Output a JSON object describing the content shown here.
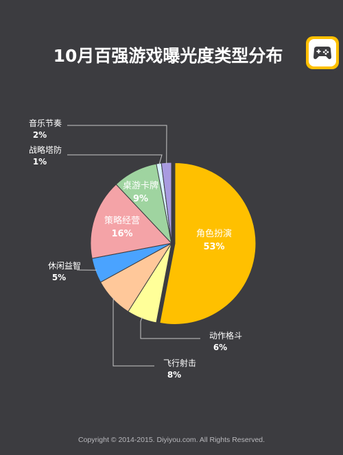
{
  "title": "10月百强游戏曝光度类型分布",
  "logo_icon": "gamepad-icon",
  "footer": "Copyright © 2014-2015. Diyiyou.com. All Rights Reserved.",
  "colors": {
    "background": "#3c3c40",
    "accent": "#ffc000",
    "label_dark": "#ffffff",
    "leader_line": "#c8c8c8"
  },
  "chart_data": {
    "type": "pie",
    "title": "10月百强游戏曝光度类型分布",
    "unit": "%",
    "slices": [
      {
        "name": "角色扮演",
        "value": 53,
        "label": "53%",
        "color": "#ffc000"
      },
      {
        "name": "动作格斗",
        "value": 6,
        "label": "6%",
        "color": "#ffff99"
      },
      {
        "name": "飞行射击",
        "value": 8,
        "label": "8%",
        "color": "#ffc89a"
      },
      {
        "name": "休闲益智",
        "value": 5,
        "label": "5%",
        "color": "#4aa3ff"
      },
      {
        "name": "策略经营",
        "value": 16,
        "label": "16%",
        "color": "#f4a3a7"
      },
      {
        "name": "桌游卡牌",
        "value": 9,
        "label": "9%",
        "color": "#9fd4a0"
      },
      {
        "name": "战略塔防",
        "value": 1,
        "label": "1%",
        "color": "#d8f2ff"
      },
      {
        "name": "音乐节奏",
        "value": 2,
        "label": "2%",
        "color": "#a89be0"
      }
    ]
  }
}
